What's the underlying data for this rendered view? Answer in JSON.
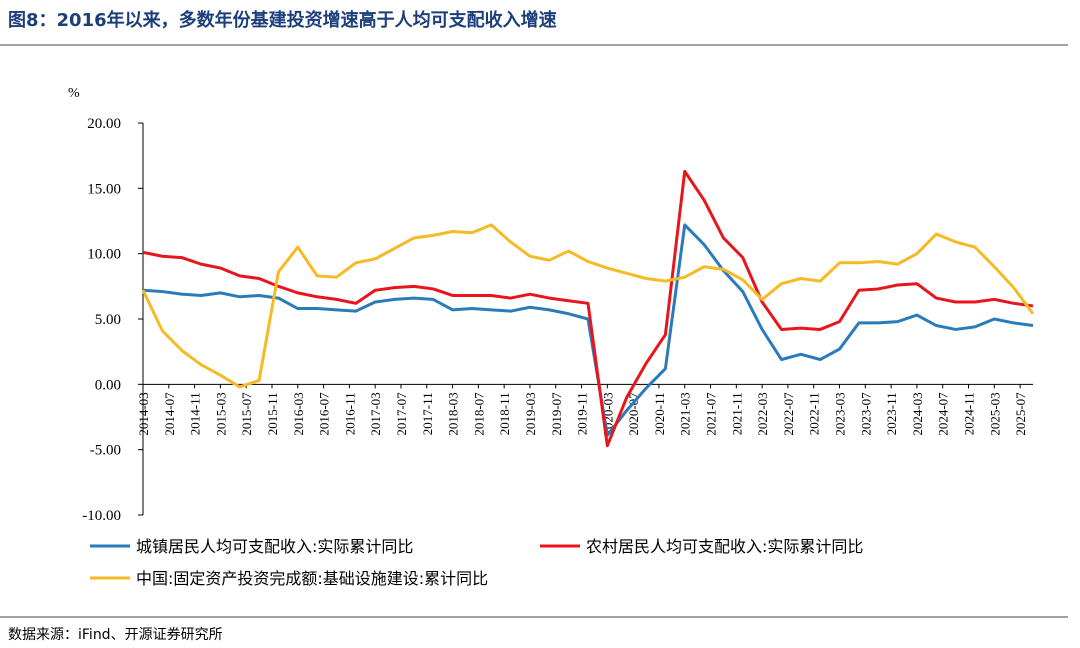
{
  "chart_data": {
    "type": "line",
    "title": "图8：2016年以来，多数年份基建投资增速高于人均可支配收入增速",
    "y_label": "%",
    "source": "数据来源：iFind、开源证券研究所",
    "x": [
      "2014-03",
      "2014-06",
      "2014-09",
      "2014-12",
      "2015-03",
      "2015-06",
      "2015-09",
      "2015-12",
      "2016-03",
      "2016-06",
      "2016-09",
      "2016-12",
      "2017-03",
      "2017-06",
      "2017-09",
      "2017-12",
      "2018-03",
      "2018-06",
      "2018-09",
      "2018-12",
      "2019-03",
      "2019-06",
      "2019-09",
      "2019-12",
      "2020-03",
      "2020-06",
      "2020-09",
      "2020-12",
      "2021-03",
      "2021-06",
      "2021-09",
      "2021-12",
      "2022-03",
      "2022-06",
      "2022-09",
      "2022-12",
      "2023-03",
      "2023-06",
      "2023-09",
      "2023-12",
      "2024-03",
      "2024-06",
      "2024-09",
      "2024-12",
      "2025-03",
      "2025-06",
      "2025-09"
    ],
    "xlim": [
      "2014-03",
      "2025-09"
    ],
    "xticks": [
      "2014-03",
      "2014-07",
      "2014-11",
      "2015-03",
      "2015-07",
      "2015-11",
      "2016-03",
      "2016-07",
      "2016-11",
      "2017-03",
      "2017-07",
      "2017-11",
      "2018-03",
      "2018-07",
      "2018-11",
      "2019-03",
      "2019-07",
      "2019-11",
      "2020-03",
      "2020-07",
      "2020-11",
      "2021-03",
      "2021-07",
      "2021-11",
      "2022-03",
      "2022-07",
      "2022-11",
      "2023-03",
      "2023-07",
      "2023-11",
      "2024-03",
      "2024-07",
      "2024-11",
      "2025-03",
      "2025-07"
    ],
    "ylim": [
      -10,
      20
    ],
    "yticks": [
      {
        "value": -10,
        "label": "-10.00"
      },
      {
        "value": -5,
        "label": "-5.00"
      },
      {
        "value": 0,
        "label": "0.00"
      },
      {
        "value": 5,
        "label": "5.00"
      },
      {
        "value": 10,
        "label": "10.00"
      },
      {
        "value": 15,
        "label": "15.00"
      },
      {
        "value": 20,
        "label": "20.00"
      }
    ],
    "grid": false,
    "series": [
      {
        "name": "城镇居民人均可支配收入:实际累计同比",
        "color": "#2b7bba",
        "values": [
          7.2,
          7.1,
          6.9,
          6.8,
          7.0,
          6.7,
          6.8,
          6.6,
          5.8,
          5.8,
          5.7,
          5.6,
          6.3,
          6.5,
          6.6,
          6.5,
          5.7,
          5.8,
          5.7,
          5.6,
          5.9,
          5.7,
          5.4,
          5.0,
          -3.9,
          -2.0,
          -0.3,
          1.2,
          12.2,
          10.7,
          8.7,
          7.1,
          4.2,
          1.9,
          2.3,
          1.9,
          2.7,
          4.7,
          4.7,
          4.8,
          5.3,
          4.5,
          4.2,
          4.4,
          5.0,
          4.7,
          4.5
        ]
      },
      {
        "name": "农村居民人均可支配收入:实际累计同比",
        "color": "#e8161c",
        "values": [
          10.1,
          9.8,
          9.7,
          9.2,
          8.9,
          8.3,
          8.1,
          7.5,
          7.0,
          6.7,
          6.5,
          6.2,
          7.2,
          7.4,
          7.5,
          7.3,
          6.8,
          6.8,
          6.8,
          6.6,
          6.9,
          6.6,
          6.4,
          6.2,
          -4.7,
          -1.0,
          1.6,
          3.8,
          16.3,
          14.1,
          11.2,
          9.7,
          6.3,
          4.2,
          4.3,
          4.2,
          4.8,
          7.2,
          7.3,
          7.6,
          7.7,
          6.6,
          6.3,
          6.3,
          6.5,
          6.2,
          6.0
        ]
      },
      {
        "name": "中国:固定资产投资完成额:基础设施建设:累计同比",
        "color": "#f6ba25",
        "values": [
          7.2,
          4.1,
          2.6,
          1.5,
          0.7,
          -0.2,
          0.3,
          8.6,
          10.5,
          8.3,
          8.2,
          9.3,
          9.6,
          10.4,
          11.2,
          11.4,
          11.7,
          11.6,
          12.2,
          10.9,
          9.8,
          9.5,
          10.2,
          9.4,
          8.9,
          8.5,
          8.1,
          7.9,
          8.2,
          9.0,
          8.8,
          8.0,
          6.5,
          7.7,
          8.1,
          7.9,
          9.3,
          9.3,
          9.4,
          9.2,
          10.0,
          11.5,
          10.9,
          10.5,
          9.0,
          7.4,
          5.4
        ]
      }
    ]
  }
}
